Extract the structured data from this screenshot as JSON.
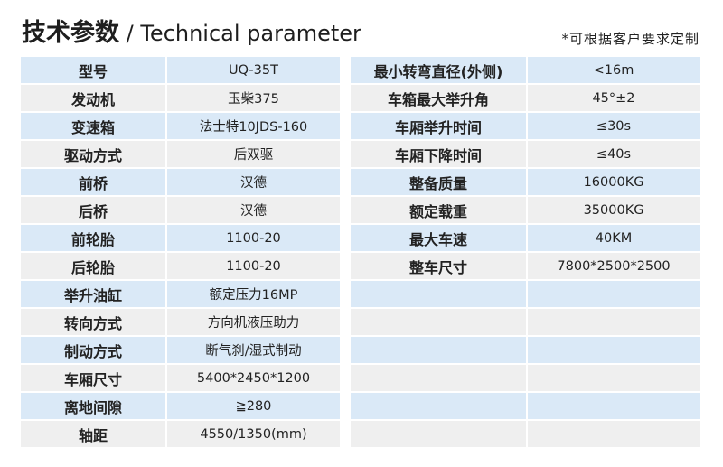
{
  "title": {
    "cn": "技术参数",
    "sep": " / ",
    "en": "Technical parameter"
  },
  "note": "*可根据客户要求定制",
  "left": [
    [
      "型号",
      "UQ-35T"
    ],
    [
      "发动机",
      "玉柴375"
    ],
    [
      "变速箱",
      "法士特10JDS-160"
    ],
    [
      "驱动方式",
      "后双驱"
    ],
    [
      "前桥",
      "汉德"
    ],
    [
      "后桥",
      "汉德"
    ],
    [
      "前轮胎",
      "1100-20"
    ],
    [
      "后轮胎",
      "1100-20"
    ],
    [
      "举升油缸",
      "额定压力16MP"
    ],
    [
      "转向方式",
      "方向机液压助力"
    ],
    [
      "制动方式",
      "断气刹/湿式制动"
    ],
    [
      "车厢尺寸",
      "5400*2450*1200"
    ],
    [
      "离地间隙",
      "≧280"
    ],
    [
      "轴距",
      "4550/1350(mm)"
    ]
  ],
  "right": [
    [
      "最小转弯直径(外侧)",
      "<16m"
    ],
    [
      "车箱最大举升角",
      "45°±2"
    ],
    [
      "车厢举升时间",
      "≤30s"
    ],
    [
      "车厢下降时间",
      "≤40s"
    ],
    [
      "整备质量",
      "16000KG"
    ],
    [
      "额定载重",
      "35000KG"
    ],
    [
      "最大车速",
      "40KM"
    ],
    [
      "整车尺寸",
      "7800*2500*2500"
    ],
    [
      "",
      ""
    ],
    [
      "",
      ""
    ],
    [
      "",
      ""
    ],
    [
      "",
      ""
    ],
    [
      "",
      ""
    ],
    [
      "",
      ""
    ]
  ],
  "colors": {
    "row_blue": "#dae9f7",
    "row_gray": "#efefef"
  }
}
